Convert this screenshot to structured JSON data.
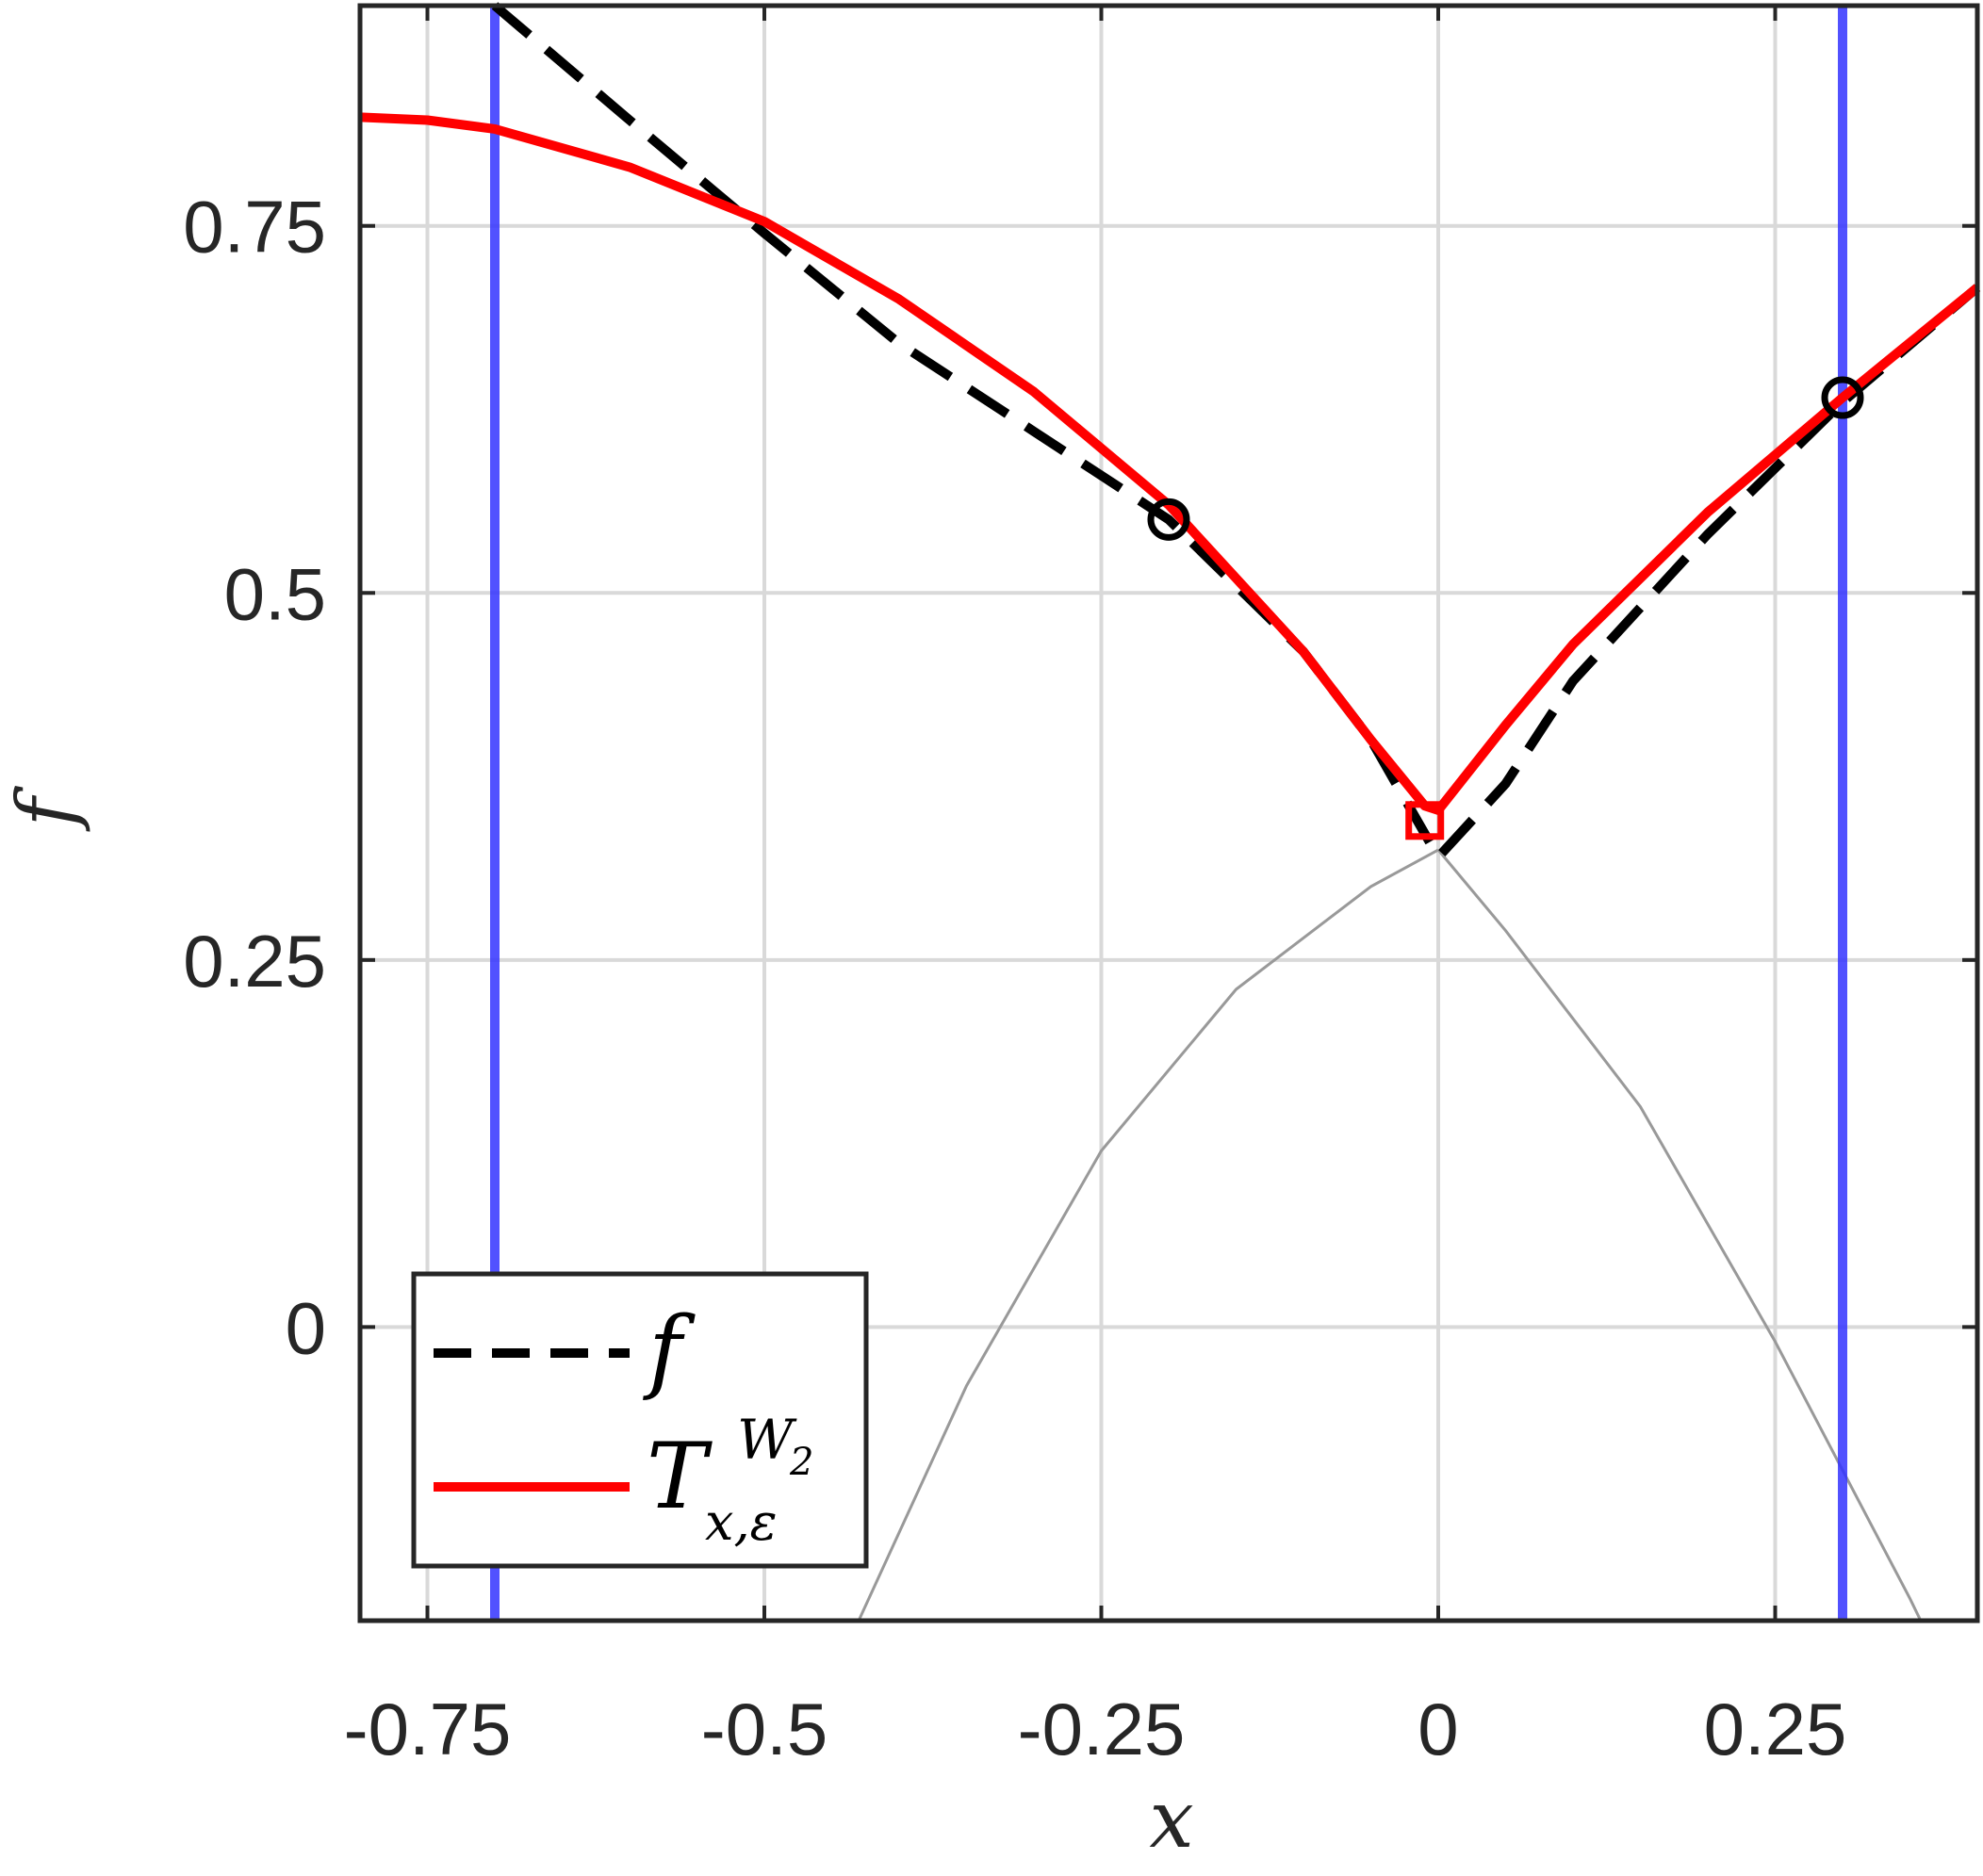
{
  "chart_data": {
    "type": "line",
    "xlabel": "x",
    "ylabel": "f",
    "xlim": [
      -0.8,
      0.4
    ],
    "ylim": [
      -0.2,
      0.9
    ],
    "grid": true,
    "x_ticks": [
      -0.75,
      -0.5,
      -0.25,
      0,
      0.25
    ],
    "x_tick_labels": [
      "-0.75",
      "-0.5",
      "-0.25",
      "0",
      "0.25"
    ],
    "y_ticks": [
      0,
      0.25,
      0.5,
      0.75
    ],
    "y_tick_labels": [
      "0",
      "0.25",
      "0.5",
      "0.75"
    ],
    "legend_position": "bottom-left",
    "legend": {
      "f_label": "f",
      "T_label": "T",
      "T_superscript": "W",
      "T_superscript_sub": "2",
      "T_subscript": "x,ε"
    },
    "series": [
      {
        "name": "f",
        "style": "dashed",
        "color": "#000000",
        "x": [
          -0.7,
          -0.6,
          -0.5,
          -0.4,
          -0.3,
          -0.2,
          -0.1,
          -0.05,
          0,
          0.05,
          0.1,
          0.2,
          0.3,
          0.4
        ],
        "y": [
          0.9,
          0.822,
          0.745,
          0.67,
          0.61,
          0.55,
          0.46,
          0.4,
          0.32,
          0.37,
          0.44,
          0.54,
          0.63,
          0.708
        ]
      },
      {
        "name": "T",
        "style": "solid",
        "color": "#ff0000",
        "x": [
          -0.8,
          -0.75,
          -0.7,
          -0.6,
          -0.5,
          -0.4,
          -0.3,
          -0.2,
          -0.1,
          -0.05,
          -0.01,
          0,
          0.05,
          0.1,
          0.2,
          0.3,
          0.4
        ],
        "y": [
          0.824,
          0.822,
          0.816,
          0.79,
          0.753,
          0.7,
          0.637,
          0.56,
          0.46,
          0.4,
          0.355,
          0.352,
          0.41,
          0.465,
          0.555,
          0.633,
          0.708
        ]
      }
    ],
    "vertical_lines": {
      "color": "#3333ff",
      "x": [
        -0.7,
        0.3
      ]
    },
    "circle_markers": {
      "color": "#000000",
      "x": [
        -0.2,
        0.3
      ],
      "y": [
        0.55,
        0.633
      ]
    },
    "square_marker": {
      "color": "#ff0000",
      "x": [
        -0.01
      ],
      "y": [
        0.345
      ]
    },
    "reference_curves": {
      "color": "#999999",
      "curves": [
        {
          "x": [
            -0.43,
            -0.35,
            -0.25,
            -0.15,
            -0.05,
            0
          ],
          "y": [
            -0.2,
            -0.04,
            0.12,
            0.23,
            0.3,
            0.325
          ]
        },
        {
          "x": [
            0,
            0.05,
            0.15,
            0.25,
            0.35,
            0.358
          ],
          "y": [
            0.325,
            0.27,
            0.15,
            -0.01,
            -0.185,
            -0.2
          ]
        }
      ]
    }
  }
}
